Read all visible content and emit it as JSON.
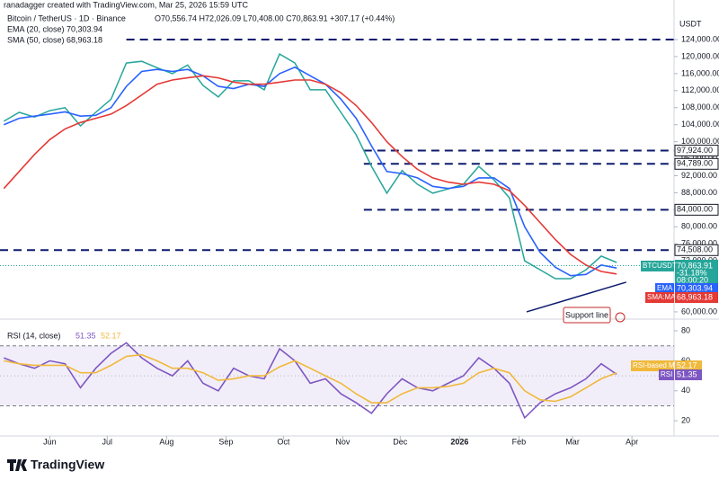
{
  "header": {
    "credit": "ranadagger created with TradingView.com, Mar 25, 2026 15:59 UTC",
    "symbol": "Bitcoin / TetherUS · 1D · Binance",
    "ohlc": "O70,556.74 H72,026.09 L70,408.00 C70,863.91 +307.17 (+0.44%)",
    "ema": "EMA (20, close) 70,303.94",
    "sma": "SMA (50, close) 68,963.18",
    "currency": "USDT"
  },
  "logo": "TradingView",
  "chart_data": [
    {
      "type": "line",
      "xlim": [
        0,
        352
      ],
      "xticks": [
        {
          "value": 26,
          "label": "Jun"
        },
        {
          "value": 56,
          "label": "Jul"
        },
        {
          "value": 87,
          "label": "Aug"
        },
        {
          "value": 118,
          "label": "Sep"
        },
        {
          "value": 148,
          "label": "Oct"
        },
        {
          "value": 179,
          "label": "Nov"
        },
        {
          "value": 209,
          "label": "Dec"
        },
        {
          "value": 240,
          "label": "2026"
        },
        {
          "value": 271,
          "label": "Feb"
        },
        {
          "value": 299,
          "label": "Mar"
        },
        {
          "value": 330,
          "label": "Apr"
        }
      ],
      "ylim": [
        58300,
        133300
      ],
      "yticks": [
        {
          "value": 60000,
          "label": "60,000.00"
        },
        {
          "value": 72000,
          "label": "72,000.00"
        },
        {
          "value": 76000,
          "label": "76,000.00"
        },
        {
          "value": 80000,
          "label": "80,000.00"
        },
        {
          "value": 88000,
          "label": "88,000.00"
        },
        {
          "value": 92000,
          "label": "92,000.00"
        },
        {
          "value": 96000,
          "label": "96,000.00"
        },
        {
          "value": 100000,
          "label": "100,000.00"
        },
        {
          "value": 104000,
          "label": "104,000.00"
        },
        {
          "value": 108000,
          "label": "108,000.00"
        },
        {
          "value": 112000,
          "label": "112,000.00"
        },
        {
          "value": 116000,
          "label": "116,000.00"
        },
        {
          "value": 120000,
          "label": "120,000.00"
        },
        {
          "value": 124000,
          "label": "124,000.00"
        }
      ],
      "x": [
        2,
        10,
        18,
        26,
        34,
        42,
        50,
        58,
        66,
        74,
        82,
        90,
        98,
        106,
        114,
        122,
        130,
        138,
        146,
        154,
        162,
        170,
        178,
        186,
        194,
        202,
        210,
        218,
        226,
        234,
        242,
        250,
        258,
        266,
        274,
        282,
        290,
        298,
        306,
        314,
        322
      ],
      "series": [
        {
          "name": "BTCUSDT",
          "color": "#26a69a",
          "values": [
            104800,
            106900,
            105800,
            107300,
            108000,
            103700,
            106900,
            110000,
            118500,
            118900,
            117400,
            116000,
            118000,
            113200,
            110500,
            114300,
            114300,
            112200,
            120600,
            118500,
            112200,
            112200,
            106900,
            101600,
            94200,
            87900,
            93200,
            90000,
            87900,
            88900,
            90000,
            94200,
            91000,
            86800,
            72000,
            69900,
            67800,
            67800,
            69900,
            73100,
            71600
          ]
        },
        {
          "name": "EMA",
          "color": "#2962ff",
          "values": [
            104000,
            105500,
            106000,
            106500,
            107000,
            106000,
            106200,
            108000,
            113000,
            116500,
            117000,
            116500,
            117000,
            115500,
            113000,
            112500,
            113500,
            113000,
            116000,
            117500,
            115500,
            113500,
            110000,
            105500,
            99000,
            93000,
            92500,
            91500,
            89500,
            89000,
            89500,
            91500,
            91500,
            89000,
            80000,
            74000,
            70500,
            68500,
            68800,
            71000,
            70300
          ]
        },
        {
          "name": "SMA:MA",
          "color": "#e53935",
          "values": [
            89000,
            93000,
            97000,
            100500,
            103000,
            104500,
            105500,
            106500,
            108500,
            111000,
            113500,
            114500,
            115000,
            115500,
            115000,
            114000,
            113500,
            113500,
            114000,
            114500,
            114500,
            113500,
            111500,
            108500,
            104500,
            100000,
            96500,
            93500,
            91500,
            90500,
            90000,
            90500,
            90000,
            88500,
            85000,
            81000,
            77000,
            73500,
            71000,
            69500,
            68900
          ]
        }
      ],
      "levels": [
        {
          "value": 124000,
          "from": 66
        },
        {
          "value": 97924,
          "label": "97,924.00",
          "from": 190
        },
        {
          "value": 94789,
          "label": "94,789.00",
          "from": 190
        },
        {
          "value": 84000,
          "label": "84,000.00",
          "from": 190
        },
        {
          "value": 74508,
          "label": "74,508.00",
          "from": 0
        }
      ],
      "trendline": {
        "x": [
          275,
          327
        ],
        "y": [
          60000,
          66970
        ],
        "label": "Support line"
      },
      "last_price": {
        "value": 70863.91,
        "label": "70,863.91",
        "change": "-31.18%",
        "countdown": "08:00:20"
      },
      "ema_tag": {
        "value": 70303.94,
        "label": "70,303.94"
      },
      "sma_tag": {
        "value": 68963.18,
        "label": "68,963.18"
      }
    },
    {
      "type": "line",
      "title": "RSI (14, close)",
      "legend_values": [
        "51.35",
        "52.17"
      ],
      "xlim": [
        0,
        352
      ],
      "ylim": [
        9.9,
        87.8
      ],
      "yticks": [
        20,
        40,
        60,
        80
      ],
      "band": [
        30,
        70
      ],
      "midline": 50,
      "x": [
        2,
        10,
        18,
        26,
        34,
        42,
        50,
        58,
        66,
        74,
        82,
        90,
        98,
        106,
        114,
        122,
        130,
        138,
        146,
        154,
        162,
        170,
        178,
        186,
        194,
        202,
        210,
        218,
        226,
        234,
        242,
        250,
        258,
        266,
        274,
        282,
        290,
        298,
        306,
        314,
        322
      ],
      "series": [
        {
          "name": "RSI",
          "color": "#7e57c2",
          "values": [
            62,
            58,
            55,
            60,
            58,
            42,
            55,
            65,
            72,
            62,
            55,
            50,
            60,
            45,
            40,
            55,
            50,
            48,
            68,
            60,
            45,
            48,
            38,
            32,
            25,
            38,
            48,
            42,
            40,
            45,
            50,
            62,
            55,
            45,
            22,
            32,
            38,
            42,
            48,
            58,
            51
          ]
        },
        {
          "name": "RSI-based MA",
          "color": "#f0b93b",
          "values": [
            60,
            58,
            57,
            57,
            57,
            52,
            52,
            57,
            63,
            64,
            60,
            55,
            55,
            52,
            47,
            48,
            50,
            50,
            56,
            60,
            55,
            50,
            45,
            38,
            32,
            32,
            38,
            42,
            42,
            43,
            45,
            52,
            55,
            52,
            40,
            34,
            33,
            36,
            42,
            48,
            52
          ]
        }
      ],
      "tags": [
        {
          "value": 52.17,
          "label": "52.17"
        },
        {
          "value": 51.35,
          "label": "51.35"
        }
      ]
    }
  ]
}
